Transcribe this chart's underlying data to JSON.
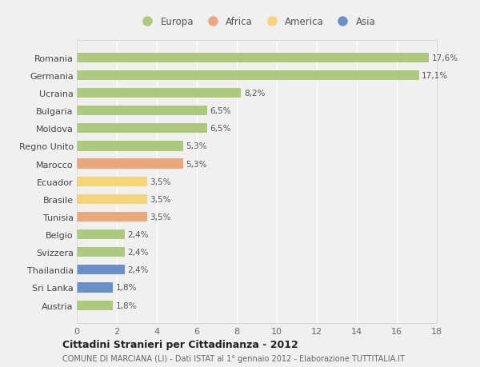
{
  "countries": [
    "Romania",
    "Germania",
    "Ucraina",
    "Bulgaria",
    "Moldova",
    "Regno Unito",
    "Marocco",
    "Ecuador",
    "Brasile",
    "Tunisia",
    "Belgio",
    "Svizzera",
    "Thailandia",
    "Sri Lanka",
    "Austria"
  ],
  "values": [
    17.6,
    17.1,
    8.2,
    6.5,
    6.5,
    5.3,
    5.3,
    3.5,
    3.5,
    3.5,
    2.4,
    2.4,
    2.4,
    1.8,
    1.8
  ],
  "labels": [
    "17,6%",
    "17,1%",
    "8,2%",
    "6,5%",
    "6,5%",
    "5,3%",
    "5,3%",
    "3,5%",
    "3,5%",
    "3,5%",
    "2,4%",
    "2,4%",
    "2,4%",
    "1,8%",
    "1,8%"
  ],
  "continents": [
    "Europa",
    "Europa",
    "Europa",
    "Europa",
    "Europa",
    "Europa",
    "Africa",
    "America",
    "America",
    "Africa",
    "Europa",
    "Europa",
    "Asia",
    "Asia",
    "Europa"
  ],
  "colors": {
    "Europa": "#adc97e",
    "Africa": "#e8a87c",
    "America": "#f5d57a",
    "Asia": "#6b8fc9"
  },
  "legend_order": [
    "Europa",
    "Africa",
    "America",
    "Asia"
  ],
  "title": "Cittadini Stranieri per Cittadinanza - 2012",
  "subtitle": "COMUNE DI MARCIANA (LI) - Dati ISTAT al 1° gennaio 2012 - Elaborazione TUTTITALIA.IT",
  "xlim": [
    0,
    18
  ],
  "xticks": [
    0,
    2,
    4,
    6,
    8,
    10,
    12,
    14,
    16,
    18
  ],
  "background_color": "#f0f0f0",
  "grid_color": "#ffffff",
  "bar_height": 0.55
}
